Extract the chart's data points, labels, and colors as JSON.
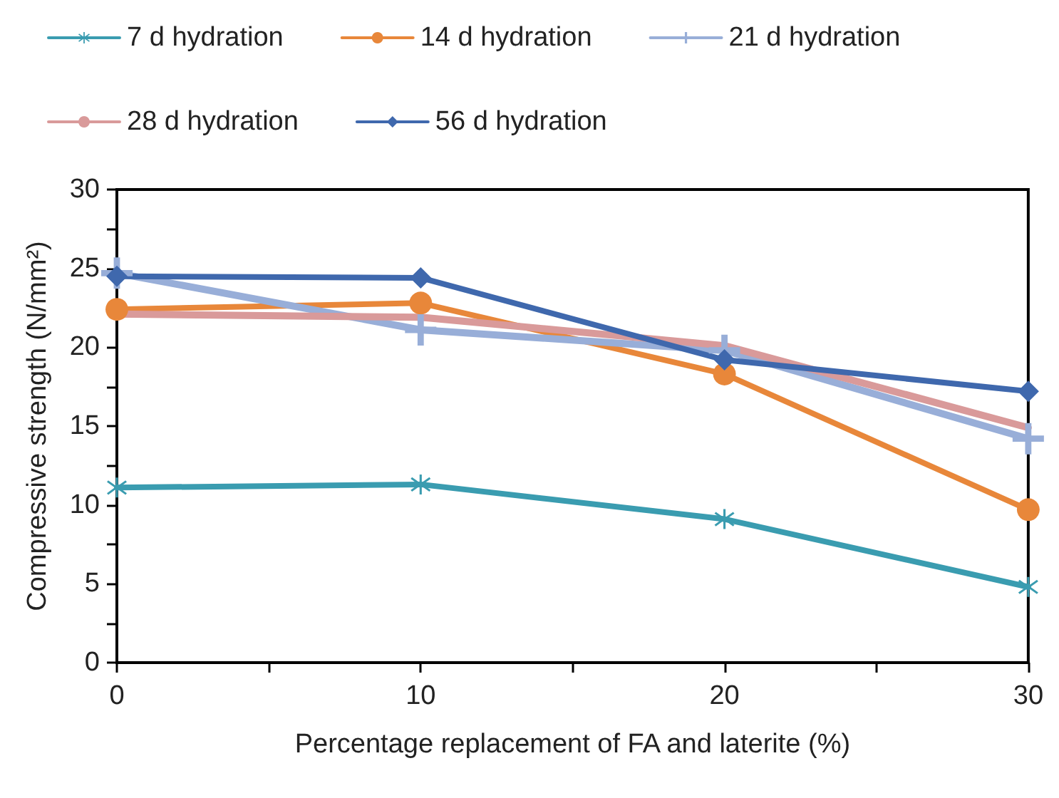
{
  "chart_data": {
    "type": "line",
    "xlabel": "Percentage replacement of FA and laterite (%)",
    "ylabel": "Compressive strength (N/mm²)",
    "x": [
      0,
      10,
      20,
      30
    ],
    "series": [
      {
        "name": "7 d hydration",
        "color": "#3a9cb0",
        "marker": "star",
        "values": [
          11.1,
          11.3,
          9.1,
          4.8
        ]
      },
      {
        "name": "14 d hydration",
        "color": "#e8873a",
        "marker": "circle",
        "values": [
          22.4,
          22.8,
          18.3,
          9.7
        ]
      },
      {
        "name": "21 d hydration",
        "color": "#98aed8",
        "marker": "cross",
        "values": [
          24.7,
          21.1,
          19.8,
          14.2
        ]
      },
      {
        "name": "28 d hydration",
        "color": "#d99a9a",
        "marker": "none",
        "values": [
          22.1,
          21.9,
          20.1,
          14.9
        ]
      },
      {
        "name": "56 d hydration",
        "color": "#3f68ad",
        "marker": "diamond",
        "values": [
          24.5,
          24.4,
          19.2,
          17.2
        ]
      }
    ],
    "xlim": [
      0,
      30
    ],
    "xticks": [
      0,
      {
        "value": 5,
        "label": null
      },
      10,
      {
        "value": 15,
        "label": null
      },
      20,
      {
        "value": 25,
        "label": null
      },
      30
    ],
    "ylim": [
      0,
      30
    ],
    "yticks": [
      0,
      {
        "value": 2.5,
        "label": null
      },
      5,
      {
        "value": 7.5,
        "label": null
      },
      10,
      {
        "value": 12.5,
        "label": null
      },
      15,
      {
        "value": 17.5,
        "label": null
      },
      20,
      {
        "value": 22.5,
        "label": null
      },
      25,
      {
        "value": 27.5,
        "label": null
      },
      30
    ],
    "grid": false,
    "legend": "top"
  }
}
